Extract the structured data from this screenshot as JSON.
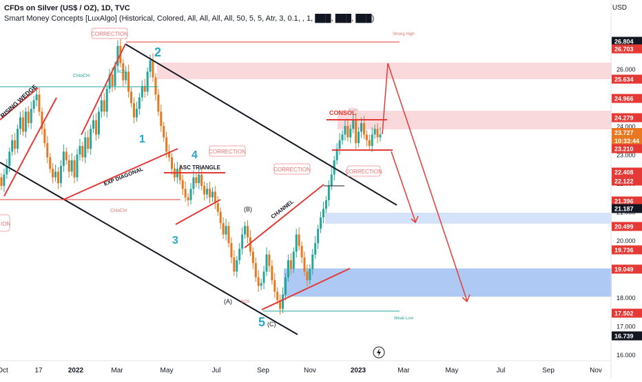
{
  "header": {
    "title": "CFDs on Silver (US$ / OZ), 1D, TVC",
    "indicator": "Smart Money Concepts [LuxAlgo] (Historical, Colored, All, All, All, All, 50, 5, 5, Atr, 3, 0.1, , 1, ███, ███, ███)"
  },
  "currency": "USD",
  "chart_data": {
    "type": "candlestick",
    "symbol": "CFDs on Silver (US$ / OZ)",
    "timeframe": "1D",
    "y_axis_ticks": [
      "26.000",
      "25.000",
      "24.000",
      "23.000",
      "22.000",
      "21.000",
      "20.000",
      "19.000",
      "18.000",
      "17.000",
      "16.000"
    ],
    "price_labels": [
      {
        "value": "26.804",
        "style": "dark"
      },
      {
        "value": "26.703",
        "style": "red"
      },
      {
        "value": "25.634",
        "style": "red"
      },
      {
        "value": "24.966",
        "style": "red"
      },
      {
        "value": "24.279",
        "style": "red"
      },
      {
        "value": "23.727\n10:33:44",
        "style": "orange"
      },
      {
        "value": "23.210",
        "style": "red"
      },
      {
        "value": "22.408",
        "style": "red"
      },
      {
        "value": "22.122",
        "style": "red"
      },
      {
        "value": "21.396",
        "style": "red"
      },
      {
        "value": "21.187",
        "style": "dark"
      },
      {
        "value": "20.499",
        "style": "red"
      },
      {
        "value": "19.736",
        "style": "red"
      },
      {
        "value": "19.049",
        "style": "red"
      },
      {
        "value": "17.502",
        "style": "red"
      },
      {
        "value": "16.739",
        "style": "dark"
      }
    ],
    "x_axis_ticks": [
      "Oct",
      "17",
      "2022",
      "Mar",
      "May",
      "Jul",
      "Sep",
      "Nov",
      "2023",
      "Mar",
      "May",
      "Jul",
      "Sep",
      "Nov"
    ],
    "ylim": [
      16.0,
      27.0
    ],
    "closes": [
      21.9,
      22.3,
      22.6,
      23.1,
      23.5,
      23.2,
      23.9,
      24.3,
      23.8,
      24.5,
      24.1,
      24.6,
      24.9,
      25.1,
      24.5,
      23.9,
      23.4,
      22.9,
      22.5,
      22.2,
      22.4,
      22.0,
      22.6,
      23.1,
      22.8,
      22.4,
      22.8,
      22.2,
      23.0,
      23.3,
      22.9,
      23.6,
      23.2,
      23.9,
      24.2,
      23.7,
      24.5,
      24.9,
      24.5,
      25.3,
      25.8,
      25.4,
      26.1,
      26.8,
      26.2,
      25.6,
      25.9,
      25.2,
      24.8,
      24.3,
      24.6,
      25.0,
      25.4,
      25.2,
      25.9,
      26.3,
      25.7,
      25.1,
      24.5,
      24.0,
      23.6,
      23.1,
      22.9,
      22.5,
      22.2,
      22.5,
      22.1,
      21.8,
      21.5,
      21.4,
      21.8,
      22.2,
      22.0,
      22.3,
      21.9,
      21.6,
      21.8,
      21.5,
      21.7,
      21.3,
      21.0,
      20.6,
      20.2,
      20.5,
      19.9,
      19.4,
      18.9,
      19.3,
      19.7,
      20.2,
      20.5,
      20.1,
      19.6,
      19.2,
      18.7,
      18.4,
      18.5,
      18.9,
      19.5,
      19.1,
      18.6,
      18.2,
      17.9,
      17.6,
      18.1,
      18.7,
      19.3,
      19.0,
      19.6,
      20.2,
      19.8,
      19.4,
      18.9,
      18.6,
      19.0,
      19.5,
      19.9,
      20.4,
      20.8,
      21.1,
      21.4,
      21.9,
      22.3,
      22.8,
      23.2,
      23.5,
      23.7,
      24.0,
      23.6,
      23.9,
      24.2,
      23.4,
      23.8,
      24.1,
      23.7,
      23.5,
      23.3,
      23.7,
      23.9,
      23.6,
      23.7
    ],
    "annotations": {
      "strong_high": "Strong High",
      "weak_low": "Weak Low",
      "choch": "CHoCH",
      "bos": "BOS",
      "eqh": "EQH",
      "wave_labels": [
        "1",
        "2",
        "3",
        "4",
        "5",
        "(A)",
        "(B)",
        "(C)"
      ],
      "patterns": [
        "RISING WEDGE",
        "EXP DIAGONAL",
        "ASC TRIANGLE",
        "CHANNEL",
        "CONSOL"
      ],
      "corrections": [
        "CORRECTION",
        "CORRECTION",
        "CORRECTION",
        "CORRECTION"
      ],
      "left_partial": "ION"
    }
  }
}
